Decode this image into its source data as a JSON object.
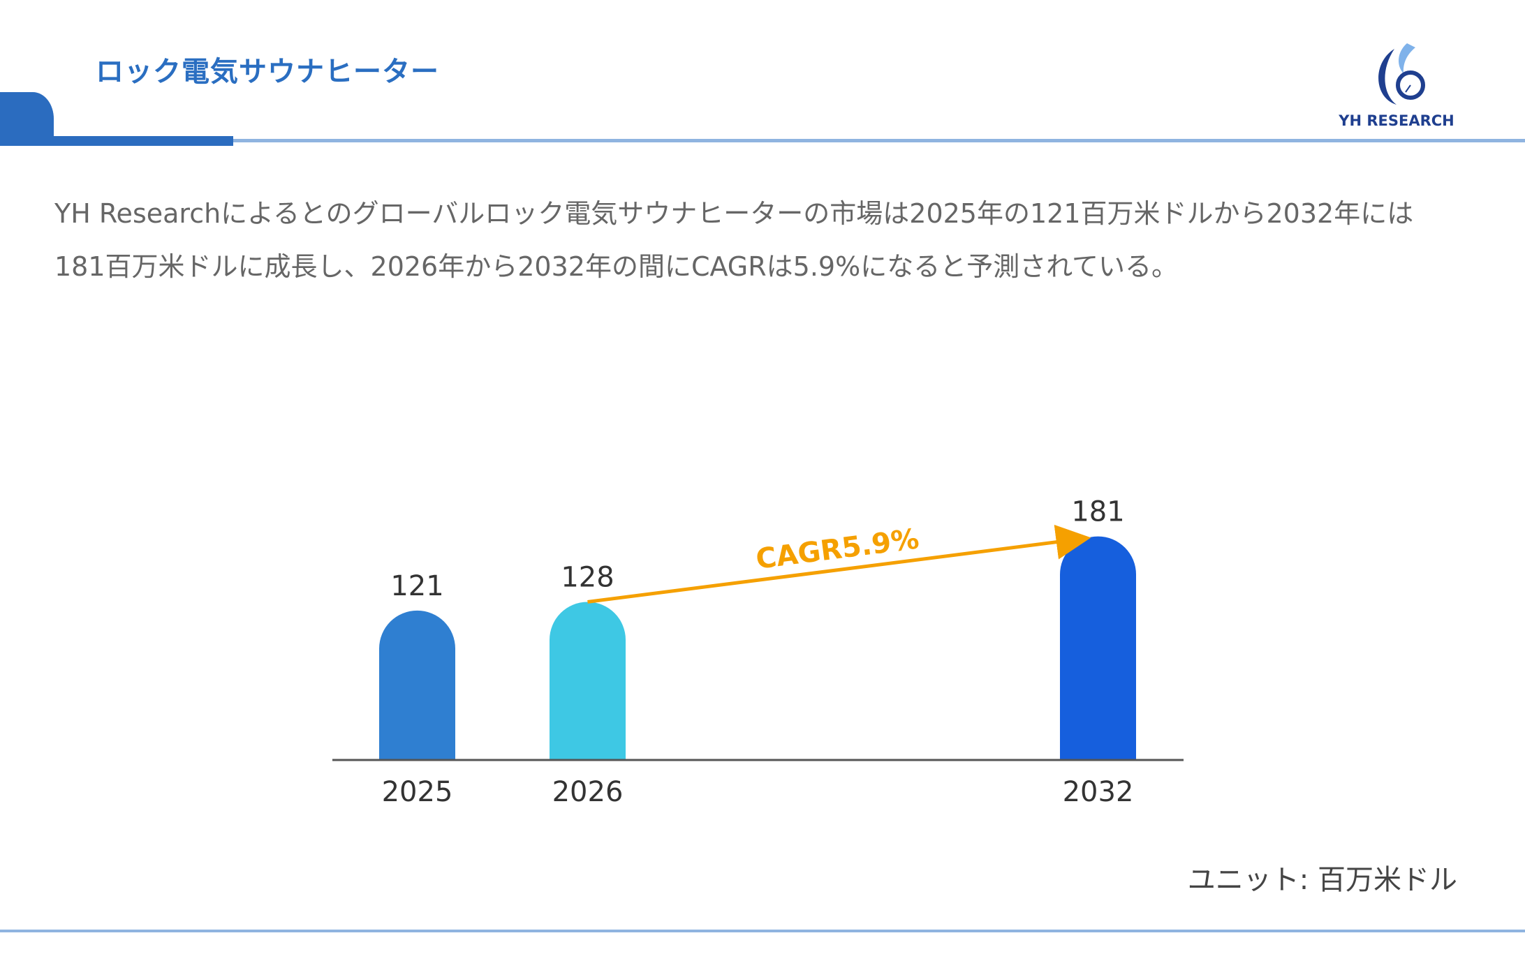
{
  "header": {
    "title": "ロック電気サウナヒーター"
  },
  "logo": {
    "text": "YH RESEARCH"
  },
  "description": "YH Researchによるとのグローバルロック電気サウナヒーターの市場は2025年の121百万米ドルから2032年には181百万米ドルに成長し、2026年から2032年の間にCAGRは5.9%になると予測されている。",
  "unit_label": "ユニット: 百万米ドル",
  "chart_data": {
    "type": "bar",
    "categories": [
      "2025",
      "2026",
      "2032"
    ],
    "values": [
      121,
      128,
      181
    ],
    "colors": [
      "#2f7fd1",
      "#3ec8e4",
      "#165fdd"
    ],
    "annotation": {
      "text": "CAGR5.9%",
      "from": "2026",
      "to": "2032",
      "color": "#f5a000"
    },
    "ylim": [
      0,
      181
    ],
    "grid": false,
    "title": "",
    "xlabel": "",
    "ylabel": ""
  }
}
